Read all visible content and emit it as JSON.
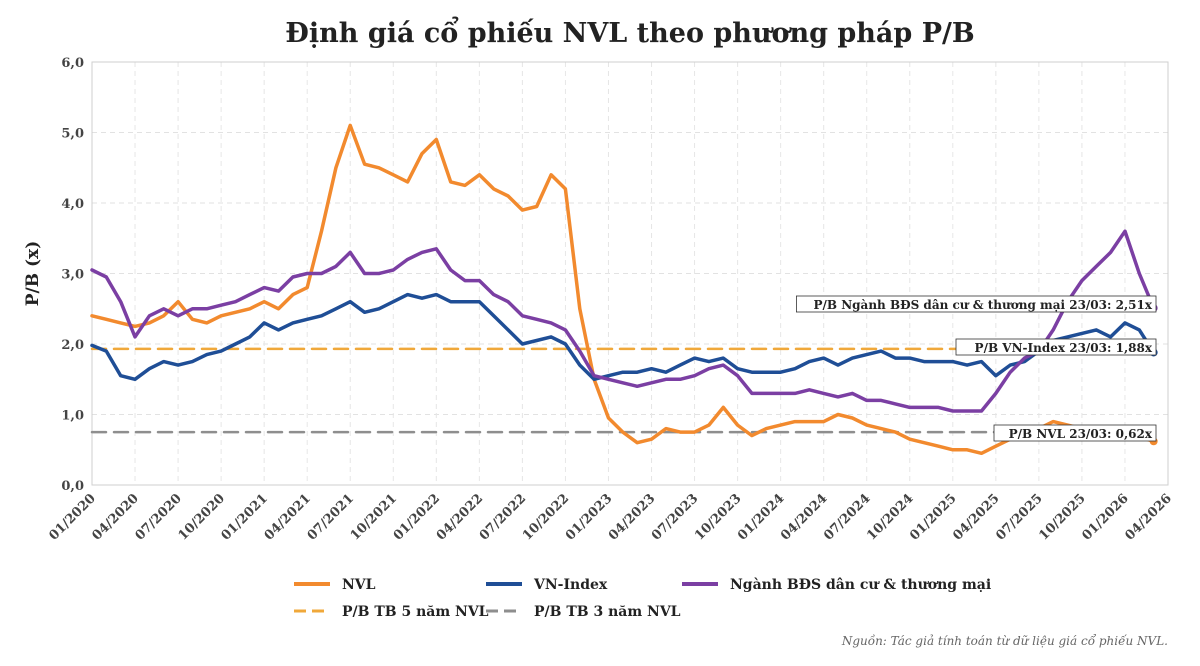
{
  "chart_data": {
    "type": "line",
    "title": "Định giá cổ phiếu NVL theo phương pháp P/B",
    "ylabel": "P/B (x)",
    "xlabel": "",
    "ylim": [
      0,
      6
    ],
    "y_ticks": [
      "0,0",
      "1,0",
      "2,0",
      "3,0",
      "4,0",
      "5,0",
      "6,0"
    ],
    "x_ticks": [
      "01/2020",
      "04/2020",
      "07/2020",
      "10/2020",
      "01/2021",
      "04/2021",
      "07/2021",
      "10/2021",
      "01/2022",
      "04/2022",
      "07/2022",
      "10/2022",
      "01/2023",
      "04/2023",
      "07/2023",
      "10/2023",
      "01/2024",
      "04/2024",
      "07/2024",
      "10/2024",
      "01/2025",
      "04/2025",
      "07/2025",
      "10/2025",
      "01/2026",
      "04/2026"
    ],
    "grid": true,
    "legend_position": "bottom",
    "x_range": [
      "2020-01",
      "2026-04"
    ],
    "series": [
      {
        "name": "NVL",
        "color": "#f28a2e",
        "x": [
          "2020-01",
          "2020-02",
          "2020-03",
          "2020-04",
          "2020-05",
          "2020-06",
          "2020-07",
          "2020-08",
          "2020-09",
          "2020-10",
          "2020-11",
          "2020-12",
          "2021-01",
          "2021-02",
          "2021-03",
          "2021-04",
          "2021-05",
          "2021-06",
          "2021-07",
          "2021-08",
          "2021-09",
          "2021-10",
          "2021-11",
          "2021-12",
          "2022-01",
          "2022-02",
          "2022-03",
          "2022-04",
          "2022-05",
          "2022-06",
          "2022-07",
          "2022-08",
          "2022-09",
          "2022-10",
          "2022-11",
          "2022-12",
          "2023-01",
          "2023-02",
          "2023-03",
          "2023-04",
          "2023-05",
          "2023-06",
          "2023-07",
          "2023-08",
          "2023-09",
          "2023-10",
          "2023-11",
          "2023-12",
          "2024-01",
          "2024-02",
          "2024-03",
          "2024-04",
          "2024-05",
          "2024-06",
          "2024-07",
          "2024-08",
          "2024-09",
          "2024-10",
          "2024-11",
          "2024-12",
          "2025-01",
          "2025-02",
          "2025-03",
          "2025-04",
          "2025-05",
          "2025-06",
          "2025-07",
          "2025-08",
          "2025-09",
          "2025-10",
          "2025-11",
          "2025-12",
          "2026-01",
          "2026-02",
          "2026-03"
        ],
        "values": [
          2.4,
          2.35,
          2.3,
          2.25,
          2.3,
          2.4,
          2.6,
          2.35,
          2.3,
          2.4,
          2.45,
          2.5,
          2.6,
          2.5,
          2.7,
          2.8,
          3.6,
          4.5,
          5.1,
          4.55,
          4.5,
          4.4,
          4.3,
          4.7,
          4.9,
          4.3,
          4.25,
          4.4,
          4.2,
          4.1,
          3.9,
          3.95,
          4.4,
          4.2,
          2.5,
          1.5,
          0.95,
          0.75,
          0.6,
          0.65,
          0.8,
          0.75,
          0.75,
          0.85,
          1.1,
          0.85,
          0.7,
          0.8,
          0.85,
          0.9,
          0.9,
          0.9,
          1.0,
          0.95,
          0.85,
          0.8,
          0.75,
          0.65,
          0.6,
          0.55,
          0.5,
          0.5,
          0.45,
          0.55,
          0.65,
          0.8,
          0.8,
          0.9,
          0.85,
          0.8,
          0.75,
          0.75,
          0.7,
          0.68,
          0.62
        ]
      },
      {
        "name": "VN-Index",
        "color": "#1f4e96",
        "x": [
          "2020-01",
          "2020-02",
          "2020-03",
          "2020-04",
          "2020-05",
          "2020-06",
          "2020-07",
          "2020-08",
          "2020-09",
          "2020-10",
          "2020-11",
          "2020-12",
          "2021-01",
          "2021-02",
          "2021-03",
          "2021-04",
          "2021-05",
          "2021-06",
          "2021-07",
          "2021-08",
          "2021-09",
          "2021-10",
          "2021-11",
          "2021-12",
          "2022-01",
          "2022-02",
          "2022-03",
          "2022-04",
          "2022-05",
          "2022-06",
          "2022-07",
          "2022-08",
          "2022-09",
          "2022-10",
          "2022-11",
          "2022-12",
          "2023-01",
          "2023-02",
          "2023-03",
          "2023-04",
          "2023-05",
          "2023-06",
          "2023-07",
          "2023-08",
          "2023-09",
          "2023-10",
          "2023-11",
          "2023-12",
          "2024-01",
          "2024-02",
          "2024-03",
          "2024-04",
          "2024-05",
          "2024-06",
          "2024-07",
          "2024-08",
          "2024-09",
          "2024-10",
          "2024-11",
          "2024-12",
          "2025-01",
          "2025-02",
          "2025-03",
          "2025-04",
          "2025-05",
          "2025-06",
          "2025-07",
          "2025-08",
          "2025-09",
          "2025-10",
          "2025-11",
          "2025-12",
          "2026-01",
          "2026-02",
          "2026-03"
        ],
        "values": [
          1.98,
          1.9,
          1.55,
          1.5,
          1.65,
          1.75,
          1.7,
          1.75,
          1.85,
          1.9,
          2.0,
          2.1,
          2.3,
          2.2,
          2.3,
          2.35,
          2.4,
          2.5,
          2.6,
          2.45,
          2.5,
          2.6,
          2.7,
          2.65,
          2.7,
          2.6,
          2.6,
          2.6,
          2.4,
          2.2,
          2.0,
          2.05,
          2.1,
          2.0,
          1.7,
          1.5,
          1.55,
          1.6,
          1.6,
          1.65,
          1.6,
          1.7,
          1.8,
          1.75,
          1.8,
          1.65,
          1.6,
          1.6,
          1.6,
          1.65,
          1.75,
          1.8,
          1.7,
          1.8,
          1.85,
          1.9,
          1.8,
          1.8,
          1.75,
          1.75,
          1.75,
          1.7,
          1.75,
          1.55,
          1.7,
          1.75,
          1.9,
          2.05,
          2.1,
          2.15,
          2.2,
          2.1,
          2.3,
          2.2,
          1.88
        ]
      },
      {
        "name": "Ngành BĐS dân cư & thương mại",
        "color": "#7b3fa3",
        "x": [
          "2020-01",
          "2020-02",
          "2020-03",
          "2020-04",
          "2020-05",
          "2020-06",
          "2020-07",
          "2020-08",
          "2020-09",
          "2020-10",
          "2020-11",
          "2020-12",
          "2021-01",
          "2021-02",
          "2021-03",
          "2021-04",
          "2021-05",
          "2021-06",
          "2021-07",
          "2021-08",
          "2021-09",
          "2021-10",
          "2021-11",
          "2021-12",
          "2022-01",
          "2022-02",
          "2022-03",
          "2022-04",
          "2022-05",
          "2022-06",
          "2022-07",
          "2022-08",
          "2022-09",
          "2022-10",
          "2022-11",
          "2022-12",
          "2023-01",
          "2023-02",
          "2023-03",
          "2023-04",
          "2023-05",
          "2023-06",
          "2023-07",
          "2023-08",
          "2023-09",
          "2023-10",
          "2023-11",
          "2023-12",
          "2024-01",
          "2024-02",
          "2024-03",
          "2024-04",
          "2024-05",
          "2024-06",
          "2024-07",
          "2024-08",
          "2024-09",
          "2024-10",
          "2024-11",
          "2024-12",
          "2025-01",
          "2025-02",
          "2025-03",
          "2025-04",
          "2025-05",
          "2025-06",
          "2025-07",
          "2025-08",
          "2025-09",
          "2025-10",
          "2025-11",
          "2025-12",
          "2026-01",
          "2026-02",
          "2026-03"
        ],
        "values": [
          3.05,
          2.95,
          2.6,
          2.1,
          2.4,
          2.5,
          2.4,
          2.5,
          2.5,
          2.55,
          2.6,
          2.7,
          2.8,
          2.75,
          2.95,
          3.0,
          3.0,
          3.1,
          3.3,
          3.0,
          3.0,
          3.05,
          3.2,
          3.3,
          3.35,
          3.05,
          2.9,
          2.9,
          2.7,
          2.6,
          2.4,
          2.35,
          2.3,
          2.2,
          1.9,
          1.55,
          1.5,
          1.45,
          1.4,
          1.45,
          1.5,
          1.5,
          1.55,
          1.65,
          1.7,
          1.55,
          1.3,
          1.3,
          1.3,
          1.3,
          1.35,
          1.3,
          1.25,
          1.3,
          1.2,
          1.2,
          1.15,
          1.1,
          1.1,
          1.1,
          1.05,
          1.05,
          1.05,
          1.3,
          1.6,
          1.8,
          1.9,
          2.2,
          2.6,
          2.9,
          3.1,
          3.3,
          3.6,
          3.0,
          2.51
        ]
      },
      {
        "name": "P/B TB 5 năm NVL",
        "color": "#f0a83a",
        "dashed": true,
        "x": [
          "2020-01",
          "2026-03"
        ],
        "values": [
          1.93,
          1.93
        ]
      },
      {
        "name": "P/B TB 3 năm NVL",
        "color": "#8e8e8e",
        "dashed": true,
        "x": [
          "2020-01",
          "2026-03"
        ],
        "values": [
          0.75,
          0.75
        ]
      }
    ],
    "annotations": [
      {
        "text": "P/B Ngành BĐS dân cư & thương mại 23/03: 2,51x",
        "value": 2.51,
        "color": "#7b3fa3"
      },
      {
        "text": "P/B VN-Index 23/03: 1,88x",
        "value": 1.88,
        "color": "#1f4e96"
      },
      {
        "text": "P/B NVL 23/03: 0,62x",
        "value": 0.62,
        "color": "#f28a2e"
      }
    ],
    "source": "Nguồn: Tác giả tính toán từ dữ liệu giá cổ phiếu NVL."
  }
}
